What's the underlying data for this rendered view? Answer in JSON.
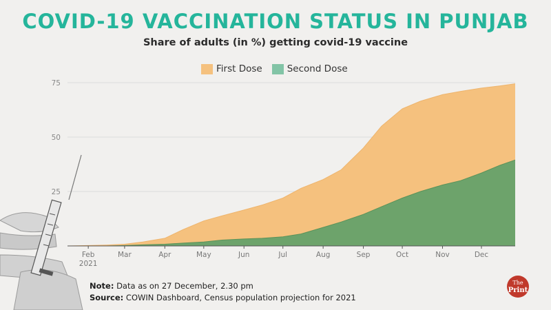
{
  "title": "COVID-19 VACCINATION STATUS IN PUNJAB",
  "subtitle": "Share of adults (in %) getting covid-19 vaccine",
  "legend": [
    {
      "label": "First Dose",
      "color": "#f5c17e"
    },
    {
      "label": "Second Dose",
      "color": "#82c4a6"
    }
  ],
  "note": {
    "note_label": "Note:",
    "note_text": " Data as on 27 December, 2.30 pm",
    "source_label": "Source:",
    "source_text": " COWIN Dashboard, Census population projection for 2021"
  },
  "logo": {
    "line1": "The",
    "line2": "Print"
  },
  "chart_data": {
    "type": "area",
    "title": "COVID-19 VACCINATION STATUS IN PUNJAB",
    "subtitle": "Share of adults (in %) getting covid-19 vaccine",
    "xlabel": "",
    "ylabel": "",
    "ylim": [
      0,
      75
    ],
    "y_ticks": [
      25,
      50,
      75
    ],
    "x_range": [
      "2021-01-16",
      "2021-12-27"
    ],
    "x_ticks": [
      {
        "date": "2021-02-01",
        "label": "Feb",
        "sublabel": "2021"
      },
      {
        "date": "2021-03-01",
        "label": "Mar"
      },
      {
        "date": "2021-04-01",
        "label": "Apr"
      },
      {
        "date": "2021-05-01",
        "label": "May"
      },
      {
        "date": "2021-06-01",
        "label": "Jun"
      },
      {
        "date": "2021-07-01",
        "label": "Jul"
      },
      {
        "date": "2021-08-01",
        "label": "Aug"
      },
      {
        "date": "2021-09-01",
        "label": "Sep"
      },
      {
        "date": "2021-10-01",
        "label": "Oct"
      },
      {
        "date": "2021-11-01",
        "label": "Nov"
      },
      {
        "date": "2021-12-01",
        "label": "Dec"
      }
    ],
    "grid": true,
    "legend_position": "top-center",
    "series": [
      {
        "name": "First Dose",
        "color": "#f5c17e",
        "points": [
          [
            "2021-01-16",
            0
          ],
          [
            "2021-02-01",
            0.2
          ],
          [
            "2021-02-15",
            0.4
          ],
          [
            "2021-03-01",
            0.8
          ],
          [
            "2021-03-15",
            1.8
          ],
          [
            "2021-04-01",
            3.5
          ],
          [
            "2021-04-15",
            7.5
          ],
          [
            "2021-05-01",
            11.5
          ],
          [
            "2021-05-15",
            13.8
          ],
          [
            "2021-06-01",
            16.5
          ],
          [
            "2021-06-15",
            18.8
          ],
          [
            "2021-07-01",
            22
          ],
          [
            "2021-07-15",
            26.5
          ],
          [
            "2021-08-01",
            30.5
          ],
          [
            "2021-08-15",
            35
          ],
          [
            "2021-09-01",
            45
          ],
          [
            "2021-09-15",
            55
          ],
          [
            "2021-10-01",
            63
          ],
          [
            "2021-10-15",
            66.5
          ],
          [
            "2021-11-01",
            69.5
          ],
          [
            "2021-11-15",
            71
          ],
          [
            "2021-12-01",
            72.5
          ],
          [
            "2021-12-15",
            73.5
          ],
          [
            "2021-12-27",
            74.5
          ]
        ]
      },
      {
        "name": "Second Dose",
        "color": "#6da36b",
        "points": [
          [
            "2021-01-16",
            0
          ],
          [
            "2021-02-15",
            0
          ],
          [
            "2021-03-01",
            0.2
          ],
          [
            "2021-03-15",
            0.5
          ],
          [
            "2021-04-01",
            0.8
          ],
          [
            "2021-04-15",
            1.3
          ],
          [
            "2021-05-01",
            1.8
          ],
          [
            "2021-05-15",
            2.7
          ],
          [
            "2021-06-01",
            3.2
          ],
          [
            "2021-06-15",
            3.5
          ],
          [
            "2021-07-01",
            4.2
          ],
          [
            "2021-07-15",
            5.5
          ],
          [
            "2021-08-01",
            8.5
          ],
          [
            "2021-08-15",
            11
          ],
          [
            "2021-09-01",
            14.5
          ],
          [
            "2021-09-15",
            18
          ],
          [
            "2021-10-01",
            22
          ],
          [
            "2021-10-15",
            25
          ],
          [
            "2021-11-01",
            28
          ],
          [
            "2021-11-15",
            30
          ],
          [
            "2021-12-01",
            33.5
          ],
          [
            "2021-12-15",
            37
          ],
          [
            "2021-12-27",
            39.5
          ]
        ]
      }
    ]
  }
}
